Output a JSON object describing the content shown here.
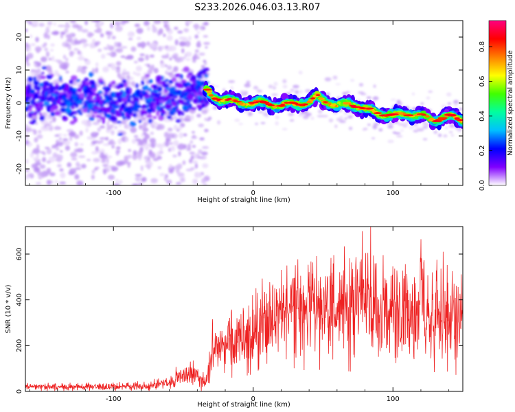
{
  "title": "S233.2026.046.03.13.R07",
  "chart_data": [
    {
      "type": "heatmap",
      "xlabel": "Height of straight line (km)",
      "ylabel": "Frequency (Hz)",
      "xlim": [
        -163,
        150
      ],
      "ylim": [
        -25,
        25
      ],
      "x_ticks": [
        -100,
        0,
        100
      ],
      "x_tick_labels": [
        "-100",
        "0",
        "100"
      ],
      "y_ticks": [
        -20,
        -10,
        0,
        10,
        20
      ],
      "y_tick_labels": [
        "-20",
        "-10",
        "0",
        "10",
        "20"
      ],
      "colorbar": {
        "label": "Normalized spectral amplitude",
        "range": [
          0,
          0.95
        ],
        "ticks": [
          0.0,
          0.2,
          0.4,
          0.6,
          0.8
        ],
        "tick_labels": [
          "0.0",
          "0.2",
          "0.4",
          "0.6",
          "0.8"
        ],
        "colormap": "rainbow",
        "stops": [
          "#ffffff",
          "#8000ff",
          "#0000ff",
          "#00c0ff",
          "#00ffa0",
          "#40ff00",
          "#ffff00",
          "#ff8000",
          "#ff0000",
          "#ff0080"
        ]
      },
      "ridge": {
        "x": [
          -163,
          -140,
          -120,
          -100,
          -80,
          -60,
          -45,
          -35,
          -30,
          -20,
          -10,
          0,
          10,
          20,
          30,
          40,
          46,
          50,
          60,
          70,
          80,
          90,
          100,
          110,
          120,
          130,
          140,
          150
        ],
        "y": [
          1,
          2,
          1,
          0,
          1,
          1,
          3,
          5,
          2,
          1,
          0,
          0,
          0,
          -1,
          0,
          0,
          2,
          1,
          -1,
          0,
          -2,
          -3,
          -4,
          -3,
          -4,
          -5,
          -4,
          -5
        ]
      },
      "grid": false
    },
    {
      "type": "line",
      "xlabel": "Height of straight line (km)",
      "ylabel": "SNR (10 * v/v)",
      "xlim": [
        -163,
        150
      ],
      "ylim": [
        0,
        720
      ],
      "x_ticks": [
        -100,
        0,
        100
      ],
      "x_tick_labels": [
        "-100",
        "0",
        "100"
      ],
      "y_ticks": [
        0,
        200,
        400,
        600
      ],
      "y_tick_labels": [
        "0",
        "200",
        "400",
        "600"
      ],
      "color": "#ee2222",
      "envelope": {
        "x": [
          -163,
          -120,
          -80,
          -60,
          -50,
          -40,
          -34,
          -30,
          -25,
          -20,
          -10,
          0,
          10,
          20,
          30,
          40,
          50,
          60,
          70,
          80,
          90,
          100,
          110,
          120,
          130,
          140,
          150
        ],
        "y": [
          20,
          20,
          22,
          35,
          70,
          65,
          30,
          150,
          180,
          200,
          230,
          260,
          300,
          340,
          350,
          360,
          350,
          360,
          380,
          380,
          360,
          350,
          340,
          350,
          340,
          330,
          330
        ]
      },
      "peaks": {
        "x": [
          -45,
          -43,
          -29,
          -18,
          3,
          19,
          22,
          30,
          34,
          78,
          84,
          88,
          120,
          128,
          136,
          150
        ],
        "y": [
          130,
          135,
          315,
          290,
          430,
          450,
          430,
          470,
          505,
          700,
          720,
          560,
          665,
          520,
          610,
          560
        ]
      },
      "grid": false
    }
  ]
}
